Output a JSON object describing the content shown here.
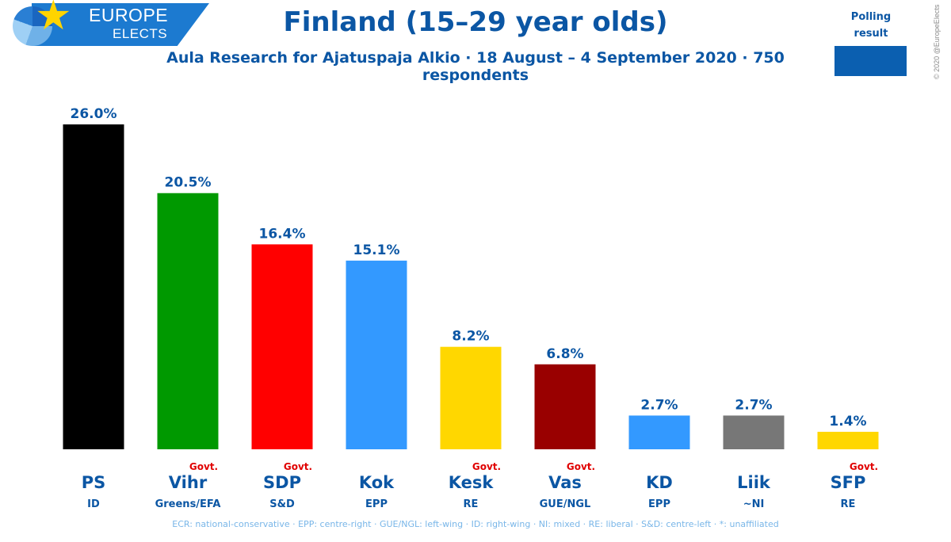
{
  "header": {
    "logo_line1": "EUROPE",
    "logo_line2": "ELECTS",
    "title": "Finland (15–29 year olds)",
    "subtitle": "Aula Research for Ajatuspaja Alkio · 18 August – 4 September 2020 · 750 respondents"
  },
  "legend": {
    "label_line1": "Polling",
    "label_line2": "result",
    "color": "#0b5fb0"
  },
  "copyright": "© 2020 @EuropeElects",
  "footnote": "ECR: national-conservative · EPP: centre-right · GUE/NGL: left-wing · ID: right-wing · NI: mixed · RE: liberal · S&D: centre-left · *: unaffiliated",
  "chart_data": {
    "type": "bar",
    "categories": [
      "PS",
      "Vihr",
      "SDP",
      "Kok",
      "Kesk",
      "Vas",
      "KD",
      "Liik",
      "SFP"
    ],
    "groups": [
      "ID",
      "Greens/EFA",
      "S&D",
      "EPP",
      "RE",
      "GUE/NGL",
      "EPP",
      "~NI",
      "RE"
    ],
    "govt": [
      false,
      true,
      true,
      false,
      true,
      true,
      false,
      false,
      true
    ],
    "govt_label": "Govt.",
    "values": [
      26.0,
      20.5,
      16.4,
      15.1,
      8.2,
      6.8,
      2.7,
      2.7,
      1.4
    ],
    "value_labels": [
      "26.0%",
      "20.5%",
      "16.4%",
      "15.1%",
      "8.2%",
      "6.8%",
      "2.7%",
      "2.7%",
      "1.4%"
    ],
    "colors": [
      "#000000",
      "#009900",
      "#ff0000",
      "#3399ff",
      "#ffd700",
      "#990000",
      "#3399ff",
      "#777777",
      "#ffd700"
    ],
    "ylim": [
      0,
      26.0
    ],
    "grid": false
  }
}
